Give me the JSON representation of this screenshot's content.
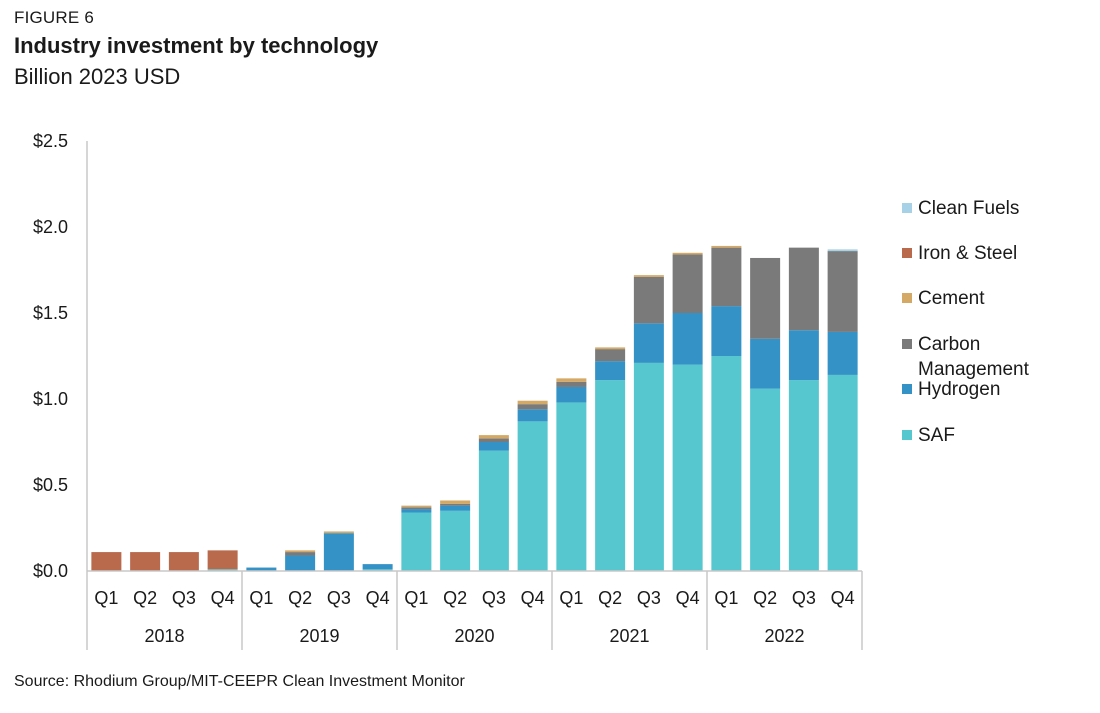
{
  "figure_label": "FIGURE 6",
  "title": "Industry investment by technology",
  "subtitle": "Billion 2023 USD",
  "source": "Source: Rhodium Group/MIT-CEEPR Clean Investment Monitor",
  "colors": {
    "Clean Fuels": "#a6d1e6",
    "Iron & Steel": "#b96a4c",
    "Cement": "#d4a865",
    "Carbon Management": "#7a7a7a",
    "Hydrogen": "#3492c7",
    "SAF": "#56c6cf"
  },
  "chart_data": {
    "type": "bar",
    "stacked": true,
    "ylim": [
      0,
      2.5
    ],
    "y_ticks": [
      "$0.0",
      "$0.5",
      "$1.0",
      "$1.5",
      "$2.0",
      "$2.5"
    ],
    "y_tick_values": [
      0,
      0.5,
      1.0,
      1.5,
      2.0,
      2.5
    ],
    "categories": [
      "Q1",
      "Q2",
      "Q3",
      "Q4",
      "Q1",
      "Q2",
      "Q3",
      "Q4",
      "Q1",
      "Q2",
      "Q3",
      "Q4",
      "Q1",
      "Q2",
      "Q3",
      "Q4",
      "Q1",
      "Q2",
      "Q3",
      "Q4"
    ],
    "year_groups": [
      "2018",
      "2019",
      "2020",
      "2021",
      "2022"
    ],
    "legend_position": "right",
    "grid": false,
    "series": [
      {
        "name": "SAF",
        "values": [
          0,
          0,
          0,
          0.01,
          0,
          0,
          0,
          0.01,
          0.34,
          0.35,
          0.7,
          0.87,
          0.98,
          1.11,
          1.21,
          1.2,
          1.25,
          1.06,
          1.11,
          1.14
        ]
      },
      {
        "name": "Hydrogen",
        "values": [
          0,
          0,
          0,
          0,
          0.02,
          0.09,
          0.22,
          0.03,
          0.02,
          0.03,
          0.05,
          0.07,
          0.09,
          0.11,
          0.23,
          0.3,
          0.29,
          0.29,
          0.29,
          0.25
        ]
      },
      {
        "name": "Carbon Management",
        "values": [
          0,
          0,
          0,
          0,
          0,
          0.02,
          0,
          0,
          0.01,
          0.01,
          0.02,
          0.03,
          0.03,
          0.07,
          0.27,
          0.34,
          0.34,
          0.47,
          0.48,
          0.47
        ]
      },
      {
        "name": "Cement",
        "values": [
          0,
          0,
          0,
          0,
          0,
          0.01,
          0.01,
          0,
          0.01,
          0.02,
          0.02,
          0.02,
          0.02,
          0.01,
          0.01,
          0.01,
          0.01,
          0,
          0,
          0
        ]
      },
      {
        "name": "Iron & Steel",
        "values": [
          0.11,
          0.11,
          0.11,
          0.11,
          0,
          0,
          0,
          0,
          0,
          0,
          0,
          0,
          0,
          0,
          0,
          0,
          0,
          0,
          0,
          0
        ]
      },
      {
        "name": "Clean Fuels",
        "values": [
          0,
          0,
          0,
          0,
          0,
          0,
          0,
          0,
          0,
          0,
          0,
          0,
          0,
          0,
          0,
          0,
          0,
          0,
          0,
          0.01
        ]
      }
    ],
    "legend_order": [
      "Clean Fuels",
      "Iron & Steel",
      "Cement",
      "Carbon Management",
      "Hydrogen",
      "SAF"
    ]
  }
}
